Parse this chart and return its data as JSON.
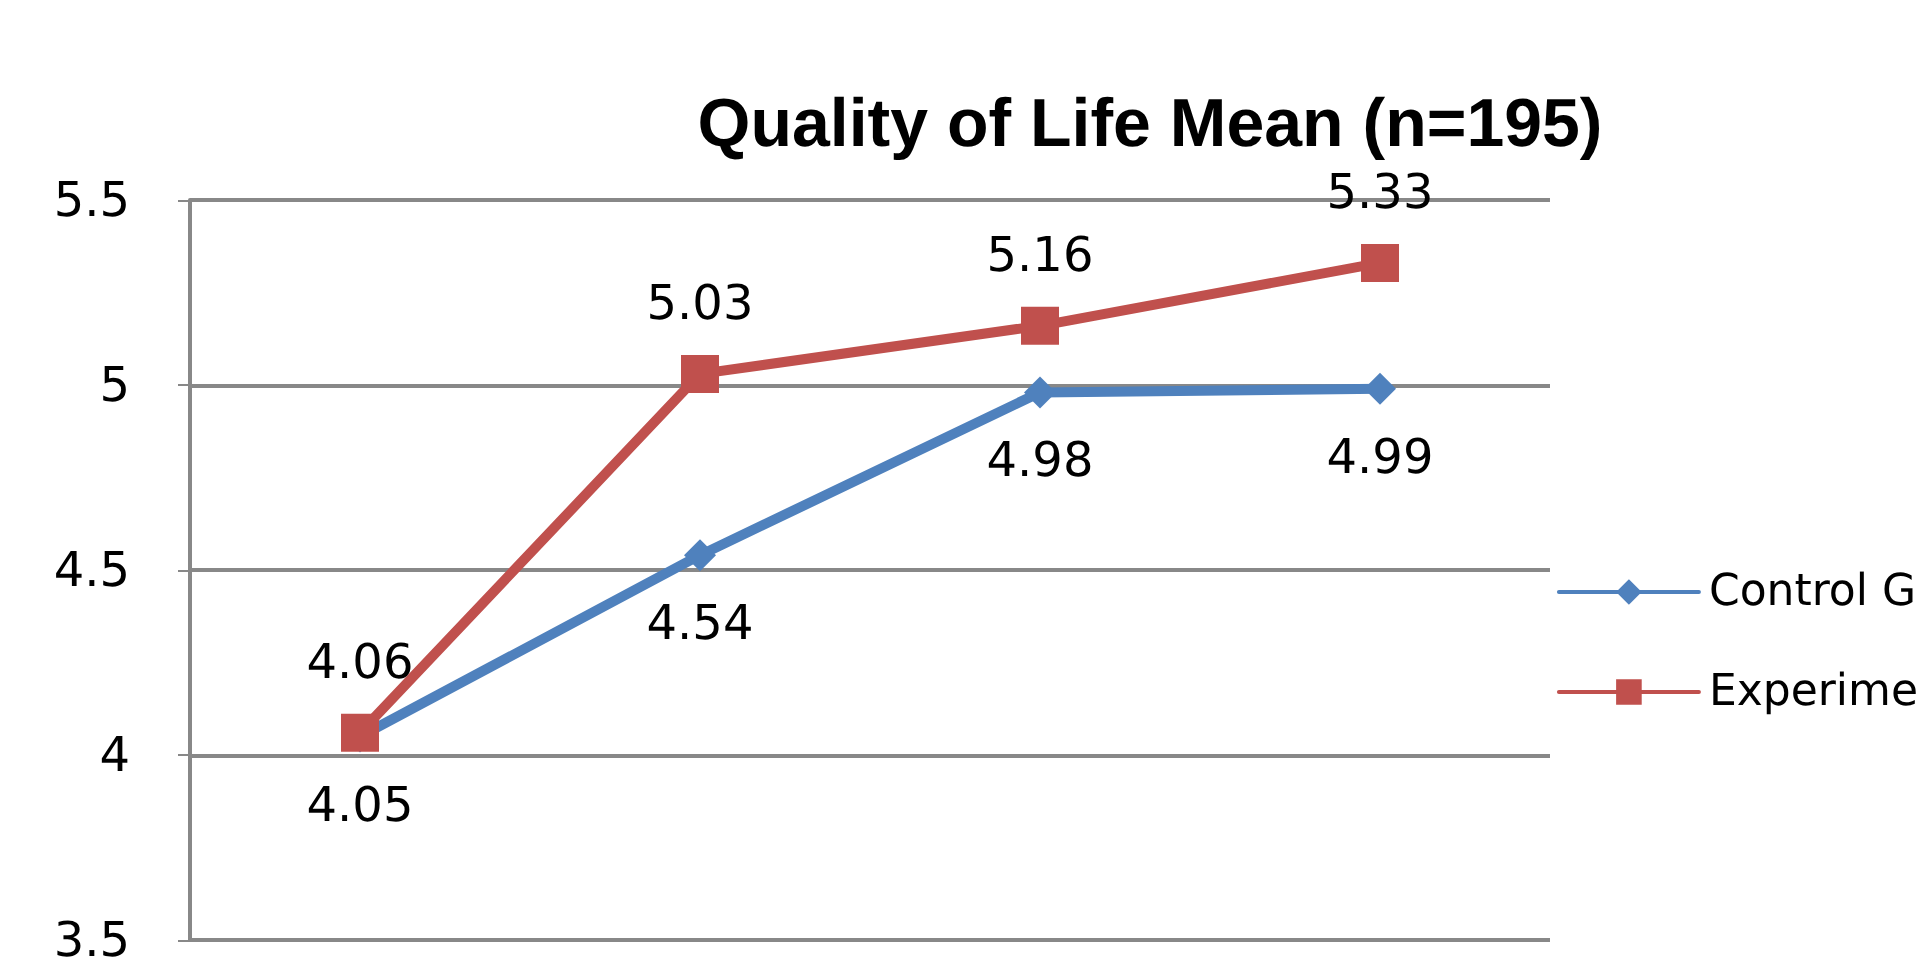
{
  "chart_data": {
    "type": "line",
    "title": "Quality of Life Mean (n=195)",
    "categories": [
      null,
      null,
      null,
      null
    ],
    "series": [
      {
        "name": "Control G",
        "color": "#4f81bd",
        "marker": "diamond",
        "values": [
          4.05,
          4.54,
          4.98,
          4.99
        ]
      },
      {
        "name": "Experime",
        "color": "#c0504d",
        "marker": "square",
        "values": [
          4.06,
          5.03,
          5.16,
          5.33
        ]
      }
    ],
    "ylim": [
      3.5,
      5.5
    ],
    "yticks": [
      3.5,
      4,
      4.5,
      5,
      5.5
    ],
    "grid": "y",
    "legend": "right",
    "data_labels": true,
    "line_style": "solid"
  }
}
